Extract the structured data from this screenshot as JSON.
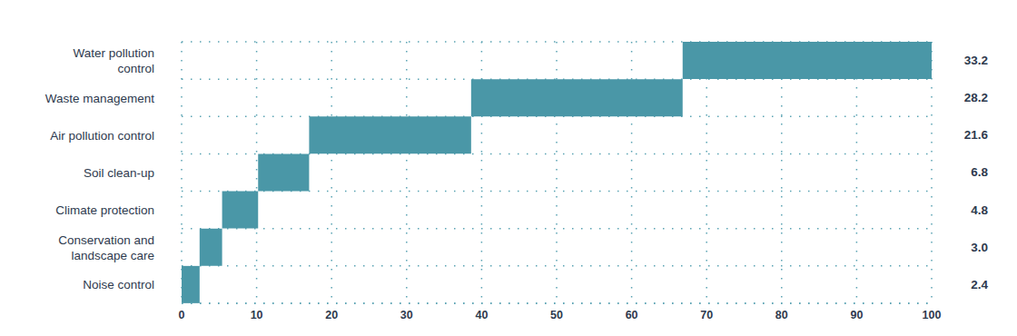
{
  "chart_data": {
    "type": "waterfall",
    "orientation": "horizontal",
    "categories": [
      "Water pollution control",
      "Waste management",
      "Air pollution control",
      "Soil clean-up",
      "Climate protection",
      "Conservation and landscape care",
      "Noise control"
    ],
    "values": [
      33.2,
      28.2,
      21.6,
      6.8,
      4.8,
      3.0,
      2.4
    ],
    "value_labels": [
      "33.2",
      "28.2",
      "21.6",
      "6.8",
      "4.8",
      "3.0",
      "2.4"
    ],
    "data_labels": true,
    "color": "#4a97a7",
    "xlim": [
      0,
      100
    ],
    "xticks": [
      0,
      10,
      20,
      30,
      40,
      50,
      60,
      70,
      80,
      90,
      100
    ],
    "grid": true
  }
}
